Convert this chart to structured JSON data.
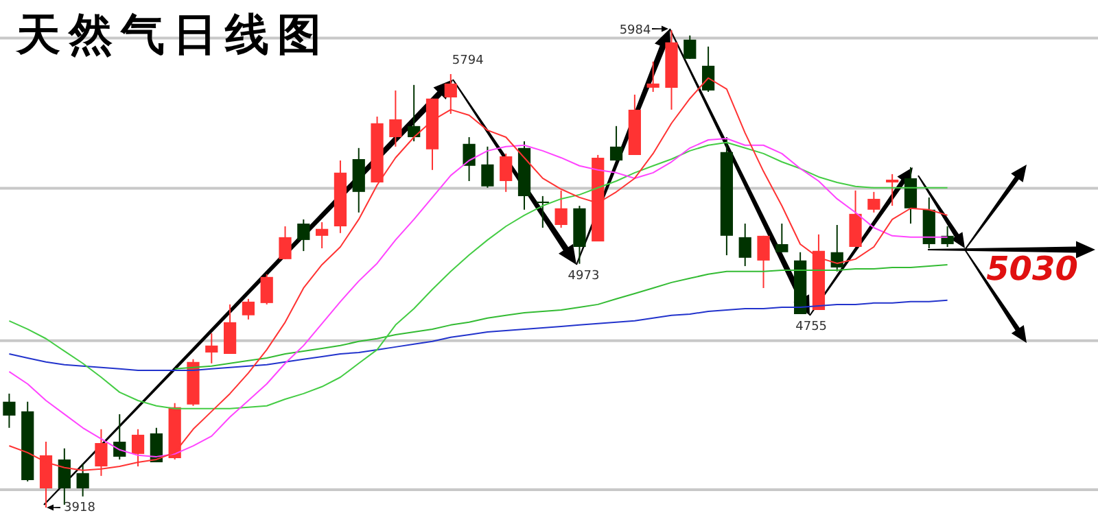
{
  "chart_data": {
    "type": "candlestick",
    "title": "天然气日线图",
    "categories": [
      null,
      null,
      null,
      null,
      null,
      null,
      null,
      null,
      null,
      null,
      null,
      null,
      null,
      null,
      null,
      null,
      null,
      null,
      null,
      null,
      null,
      null,
      null,
      null,
      null,
      null,
      null,
      null,
      null,
      null,
      null,
      null,
      null,
      null,
      null,
      null,
      null,
      null,
      null,
      null,
      null,
      null,
      null,
      null,
      null,
      null,
      null,
      null,
      null,
      null,
      null,
      null
    ],
    "ohlc": [
      [
        4376,
        4411,
        4263,
        4316
      ],
      [
        4334,
        4376,
        4031,
        4037
      ],
      [
        4001,
        4203,
        3918,
        4144
      ],
      [
        4126,
        4174,
        3930,
        4001
      ],
      [
        4067,
        4108,
        3966,
        4001
      ],
      [
        4096,
        4257,
        4055,
        4197
      ],
      [
        4203,
        4322,
        4126,
        4138
      ],
      [
        4150,
        4257,
        4096,
        4233
      ],
      [
        4239,
        4263,
        4114,
        4114
      ],
      [
        4132,
        4370,
        4126,
        4352
      ],
      [
        4364,
        4560,
        4358,
        4548
      ],
      [
        4589,
        4672,
        4542,
        4619
      ],
      [
        4583,
        4797,
        4583,
        4720
      ],
      [
        4750,
        4821,
        4732,
        4809
      ],
      [
        4803,
        4928,
        4797,
        4916
      ],
      [
        4993,
        5135,
        4993,
        5088
      ],
      [
        5147,
        5165,
        5028,
        5076
      ],
      [
        5094,
        5153,
        5040,
        5124
      ],
      [
        5135,
        5420,
        5106,
        5367
      ],
      [
        5426,
        5474,
        5195,
        5284
      ],
      [
        5325,
        5610,
        5325,
        5581
      ],
      [
        5521,
        5723,
        5480,
        5598
      ],
      [
        5569,
        5747,
        5503,
        5521
      ],
      [
        5468,
        5688,
        5379,
        5688
      ],
      [
        5693,
        5794,
        5622,
        5753
      ],
      [
        5492,
        5521,
        5331,
        5397
      ],
      [
        5403,
        5480,
        5302,
        5308
      ],
      [
        5331,
        5450,
        5284,
        5438
      ],
      [
        5474,
        5503,
        5207,
        5266
      ],
      [
        5242,
        5266,
        5129,
        5236
      ],
      [
        5141,
        5290,
        5129,
        5213
      ],
      [
        5213,
        5224,
        4973,
        5046
      ],
      [
        5070,
        5444,
        5070,
        5432
      ],
      [
        5480,
        5569,
        5420,
        5420
      ],
      [
        5444,
        5705,
        5444,
        5640
      ],
      [
        5735,
        5848,
        5717,
        5753
      ],
      [
        5735,
        5984,
        5640,
        5931
      ],
      [
        5943,
        5961,
        5860,
        5860
      ],
      [
        5830,
        5913,
        5717,
        5723
      ],
      [
        5456,
        5521,
        5010,
        5094
      ],
      [
        5088,
        5147,
        4963,
        4999
      ],
      [
        4987,
        5094,
        4868,
        5094
      ],
      [
        5058,
        5147,
        5023,
        5023
      ],
      [
        4987,
        5023,
        4755,
        4755
      ],
      [
        4773,
        5100,
        4773,
        5029
      ],
      [
        5023,
        5141,
        4940,
        4957
      ],
      [
        5046,
        5290,
        5046,
        5189
      ],
      [
        5207,
        5284,
        5195,
        5254
      ],
      [
        5325,
        5361,
        5224,
        5337
      ],
      [
        5343,
        5391,
        5147,
        5213
      ],
      [
        5207,
        5260,
        5040,
        5058
      ],
      [
        5094,
        5135,
        5046,
        5058
      ]
    ],
    "colors": [
      "#003300",
      "#003300",
      "#ff3333",
      "#003300",
      "#003300",
      "#ff3333",
      "#003300",
      "#ff3333",
      "#003300",
      "#ff3333",
      "#ff3333",
      "#ff3333",
      "#ff3333",
      "#ff3333",
      "#ff3333",
      "#ff3333",
      "#003300",
      "#ff3333",
      "#ff3333",
      "#003300",
      "#ff3333",
      "#ff3333",
      "#003300",
      "#ff3333",
      "#ff3333",
      "#003300",
      "#003300",
      "#ff3333",
      "#003300",
      "#003300",
      "#ff3333",
      "#003300",
      "#ff3333",
      "#003300",
      "#ff3333",
      "#ff3333",
      "#ff3333",
      "#003300",
      "#003300",
      "#003300",
      "#003300",
      "#ff3333",
      "#003300",
      "#003300",
      "#ff3333",
      "#003300",
      "#ff3333",
      "#ff3333",
      "#ff3333",
      "#003300",
      "#003300",
      "#003300"
    ],
    "series": [
      {
        "type": "line",
        "color": "#ff3333",
        "values": [
          4185,
          4156,
          4114,
          4091,
          4079,
          4085,
          4096,
          4114,
          4126,
          4156,
          4257,
          4334,
          4411,
          4500,
          4601,
          4720,
          4868,
          4969,
          5046,
          5165,
          5314,
          5432,
          5521,
          5593,
          5640,
          5616,
          5551,
          5521,
          5432,
          5343,
          5296,
          5260,
          5236,
          5284,
          5343,
          5450,
          5581,
          5688,
          5777,
          5729,
          5539,
          5373,
          5224,
          5058,
          4999,
          4975,
          4993,
          5046,
          5165,
          5213,
          5207,
          5183
        ]
      },
      {
        "type": "line",
        "color": "#ff44ff",
        "values": [
          4506,
          4453,
          4381,
          4322,
          4263,
          4215,
          4168,
          4144,
          4138,
          4150,
          4185,
          4227,
          4310,
          4381,
          4453,
          4542,
          4619,
          4714,
          4809,
          4898,
          4975,
          5076,
          5165,
          5260,
          5355,
          5420,
          5462,
          5480,
          5486,
          5462,
          5432,
          5397,
          5379,
          5367,
          5343,
          5367,
          5414,
          5474,
          5509,
          5515,
          5486,
          5486,
          5450,
          5385,
          5331,
          5254,
          5195,
          5129,
          5094,
          5088,
          5088,
          5088
        ]
      },
      {
        "type": "line",
        "color": "#44cc44",
        "values": [
          4726,
          4690,
          4649,
          4595,
          4542,
          4482,
          4417,
          4381,
          4358,
          4346,
          4346,
          4346,
          4346,
          4352,
          4358,
          4387,
          4411,
          4441,
          4482,
          4542,
          4601,
          4708,
          4779,
          4862,
          4940,
          5011,
          5076,
          5135,
          5183,
          5224,
          5254,
          5272,
          5302,
          5331,
          5367,
          5397,
          5426,
          5462,
          5486,
          5498,
          5474,
          5450,
          5414,
          5385,
          5349,
          5325,
          5308,
          5302,
          5302,
          5302,
          5302,
          5302
        ]
      },
      {
        "type": "line",
        "color": "#33bb33",
        "values": [
          null,
          null,
          null,
          null,
          null,
          null,
          null,
          null,
          null,
          4518,
          4524,
          4530,
          4542,
          4554,
          4565,
          4583,
          4595,
          4607,
          4619,
          4637,
          4649,
          4666,
          4678,
          4690,
          4708,
          4720,
          4738,
          4750,
          4761,
          4767,
          4773,
          4785,
          4797,
          4821,
          4844,
          4868,
          4892,
          4910,
          4928,
          4940,
          4940,
          4940,
          4945,
          4945,
          4945,
          4945,
          4951,
          4951,
          4957,
          4957,
          4963,
          4969
        ]
      },
      {
        "type": "line",
        "color": "#2233cc",
        "values": [
          4583,
          4565,
          4548,
          4536,
          4530,
          4524,
          4518,
          4512,
          4512,
          4512,
          4512,
          4518,
          4524,
          4530,
          4536,
          4548,
          4560,
          4571,
          4583,
          4589,
          4601,
          4613,
          4625,
          4637,
          4655,
          4666,
          4678,
          4684,
          4690,
          4696,
          4702,
          4708,
          4714,
          4720,
          4726,
          4738,
          4750,
          4755,
          4767,
          4773,
          4779,
          4779,
          4785,
          4785,
          4791,
          4797,
          4797,
          4803,
          4803,
          4809,
          4809,
          4815
        ]
      }
    ],
    "yticks": [
      {
        "value": 5950,
        "label": null
      },
      {
        "value": 5300,
        "label": null
      },
      {
        "value": 4640,
        "label": null
      },
      {
        "value": 3995,
        "label": null
      }
    ],
    "grid": "y",
    "tick_labels": false,
    "marker": "none",
    "annotations": [
      "5794",
      "4973",
      "5984",
      "4755",
      "3918",
      "5030"
    ]
  }
}
